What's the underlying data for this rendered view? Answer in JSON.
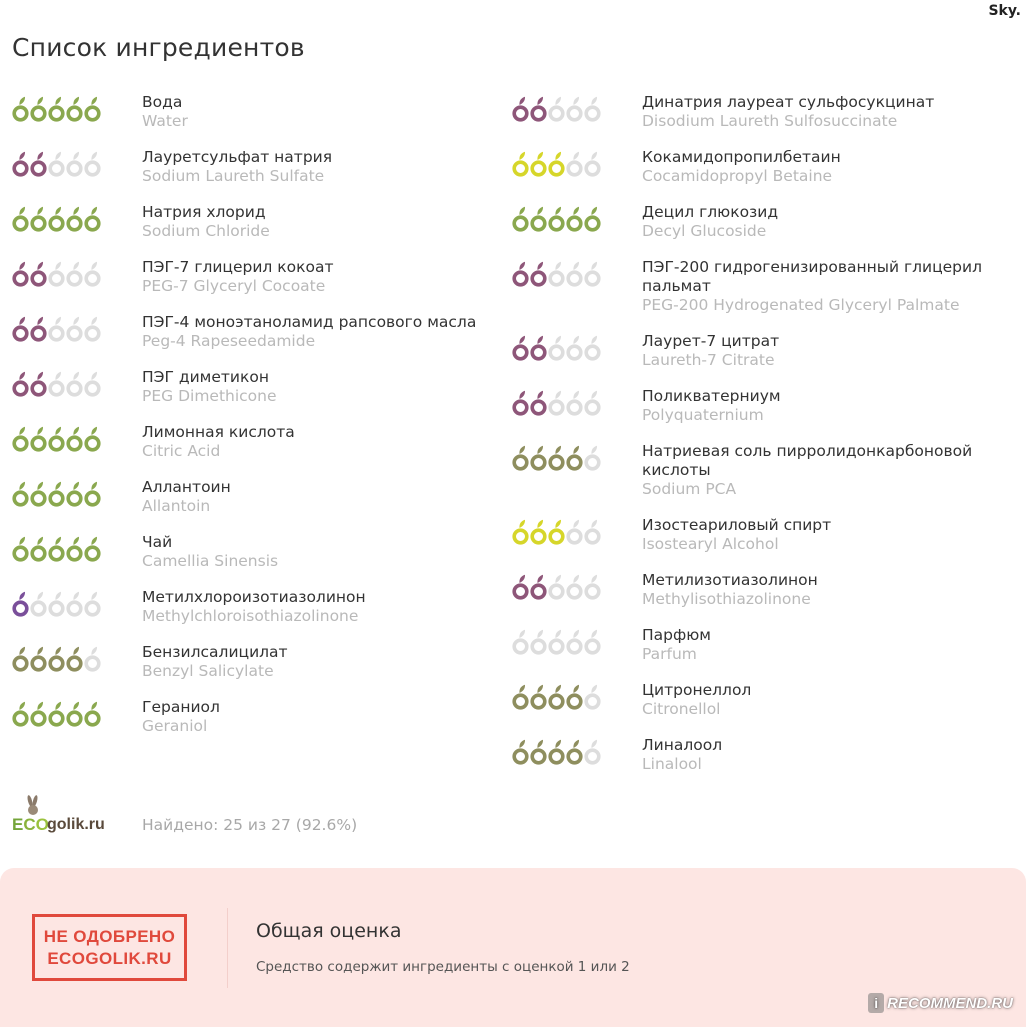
{
  "header": {
    "corner_text": "Sky.",
    "title": "Список ингредиентов"
  },
  "colors": {
    "green": "#8aa84e",
    "olive": "#8e8e5e",
    "yellow": "#d6d62a",
    "purple": "#8e5679",
    "violet": "#7a4f9a",
    "empty": "#dddddd",
    "reject_red": "#e0493c",
    "verdict_bg": "#fde6e3"
  },
  "ingredients_left": [
    {
      "ru": "Вода",
      "en": "Water",
      "rating": 5,
      "color": "green"
    },
    {
      "ru": "Лауретсульфат натрия",
      "en": "Sodium Laureth Sulfate",
      "rating": 2,
      "color": "purple"
    },
    {
      "ru": "Натрия хлорид",
      "en": "Sodium Chloride",
      "rating": 5,
      "color": "green"
    },
    {
      "ru": "ПЭГ-7 глицерил кокоат",
      "en": "PEG-7 Glyceryl Cocoate",
      "rating": 2,
      "color": "purple"
    },
    {
      "ru": "ПЭГ-4 моноэтаноламид рапсового масла",
      "en": "Peg-4 Rapeseedamide",
      "rating": 2,
      "color": "purple"
    },
    {
      "ru": "ПЭГ диметикон",
      "en": "PEG Dimethicone",
      "rating": 2,
      "color": "purple"
    },
    {
      "ru": "Лимонная кислота",
      "en": "Citric Acid",
      "rating": 5,
      "color": "green"
    },
    {
      "ru": "Аллантоин",
      "en": "Allantoin",
      "rating": 5,
      "color": "green"
    },
    {
      "ru": "Чай",
      "en": "Camellia Sinensis",
      "rating": 5,
      "color": "green"
    },
    {
      "ru": "Метилхлороизотиазолинон",
      "en": "Methylchloroisothiazolinone",
      "rating": 1,
      "color": "violet"
    },
    {
      "ru": "Бензилсалицилат",
      "en": "Benzyl Salicylate",
      "rating": 4,
      "color": "olive"
    },
    {
      "ru": "Гераниол",
      "en": "Geraniol",
      "rating": 5,
      "color": "green"
    }
  ],
  "ingredients_right": [
    {
      "ru": "Динатрия лауреат сульфосукцинат",
      "en": "Disodium Laureth Sulfosuccinate",
      "rating": 2,
      "color": "purple"
    },
    {
      "ru": "Кокамидопропилбетаин",
      "en": "Cocamidopropyl Betaine",
      "rating": 3,
      "color": "yellow"
    },
    {
      "ru": "Децил глюкозид",
      "en": "Decyl Glucoside",
      "rating": 5,
      "color": "green"
    },
    {
      "ru": "ПЭГ-200 гидрогенизированный глицерил пальмат",
      "en": "PEG-200 Hydrogenated Glyceryl Palmate",
      "rating": 2,
      "color": "purple"
    },
    {
      "ru": "Лаурет-7 цитрат",
      "en": "Laureth-7 Citrate",
      "rating": 2,
      "color": "purple"
    },
    {
      "ru": "Поликватерниум",
      "en": "Polyquaternium",
      "rating": 2,
      "color": "purple"
    },
    {
      "ru": "Натриевая соль пирролидонкарбоновой кислоты",
      "en": "Sodium PCA",
      "rating": 4,
      "color": "olive"
    },
    {
      "ru": "Изостеариловый спирт",
      "en": "Isostearyl Alcohol",
      "rating": 3,
      "color": "yellow"
    },
    {
      "ru": "Метилизотиазолинон",
      "en": "Methylisothiazolinone",
      "rating": 2,
      "color": "purple"
    },
    {
      "ru": "Парфюм",
      "en": "Parfum",
      "rating": 0,
      "color": "empty"
    },
    {
      "ru": "Цитронеллол",
      "en": "Citronellol",
      "rating": 4,
      "color": "olive"
    },
    {
      "ru": "Линалоол",
      "en": "Linalool",
      "rating": 4,
      "color": "olive"
    }
  ],
  "footer": {
    "logo_eco": "ECO",
    "logo_site": "golik.ru",
    "found_text": "Найдено: 25 из 27 (92.6%)"
  },
  "verdict": {
    "stamp_line1": "НЕ ОДОБРЕНО",
    "stamp_line2": "ECOGOLIK.RU",
    "title": "Общая оценка",
    "description": "Средство содержит ингредиенты с оценкой 1 или 2"
  },
  "watermark": {
    "icon": "i",
    "text": "RECOMMEND.RU"
  }
}
